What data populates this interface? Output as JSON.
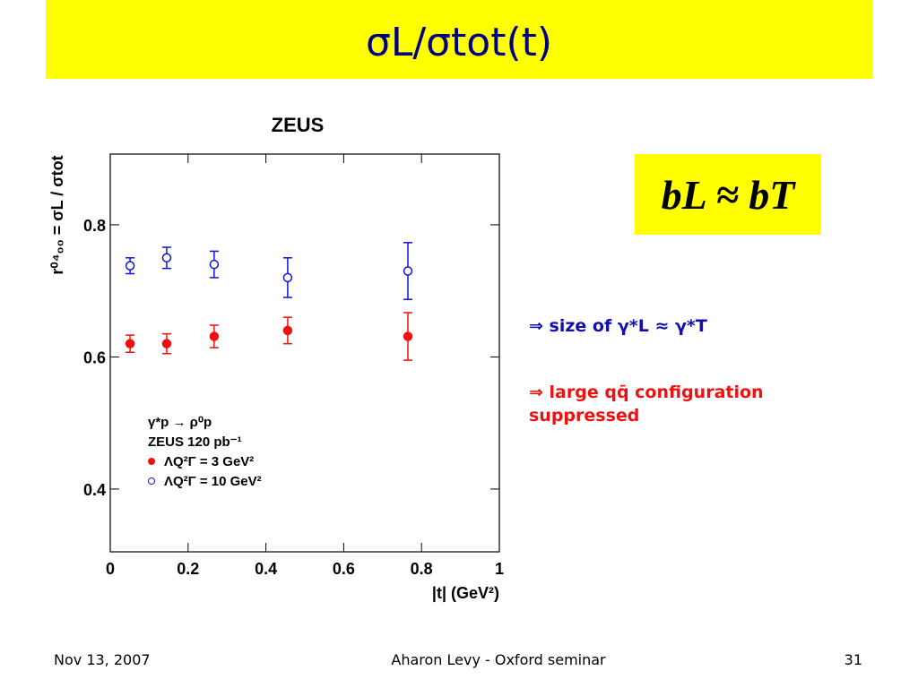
{
  "slide": {
    "title": "σL/σtot(t)",
    "box": "bL ≈ bT",
    "bullets": [
      "⇒ size of γ*L ≈ γ*T",
      "⇒ large qq̄ configuration",
      "suppressed"
    ],
    "footer": {
      "date": "Nov 13, 2007",
      "center": "Aharon Levy - Oxford seminar",
      "page": "31"
    }
  },
  "chart_data": {
    "type": "scatter",
    "title": "ZEUS",
    "x_label": "|t| (GeV²)",
    "y_label": "r⁰⁴₀₀ = σL / σtot",
    "x": [
      0.051,
      0.145,
      0.267,
      0.456,
      0.765
    ],
    "series": [
      {
        "name": "ΛQ²Γ = 3 GeV²",
        "color": "#ee1111",
        "marker": "filled",
        "values": [
          0.62,
          0.62,
          0.631,
          0.64,
          0.631
        ],
        "errors": [
          0.013,
          0.015,
          0.017,
          0.02,
          0.036
        ]
      },
      {
        "name": "ΛQ²Γ = 10 GeV²",
        "color": "#1111dd",
        "marker": "open",
        "values": [
          0.738,
          0.75,
          0.74,
          0.72,
          0.73
        ],
        "errors": [
          0.012,
          0.016,
          0.02,
          0.03,
          0.043
        ]
      }
    ],
    "annotations": [
      "γ*p → ρ⁰p",
      "ZEUS 120 pb⁻¹"
    ],
    "legend": "lower left",
    "xlim": [
      0,
      1
    ],
    "xticks": [
      0,
      0.2,
      0.4,
      0.6,
      0.8,
      1
    ],
    "ylim": [
      0.305,
      0.907
    ],
    "yticks": [
      0.4,
      0.6,
      0.8
    ],
    "grid": false
  }
}
